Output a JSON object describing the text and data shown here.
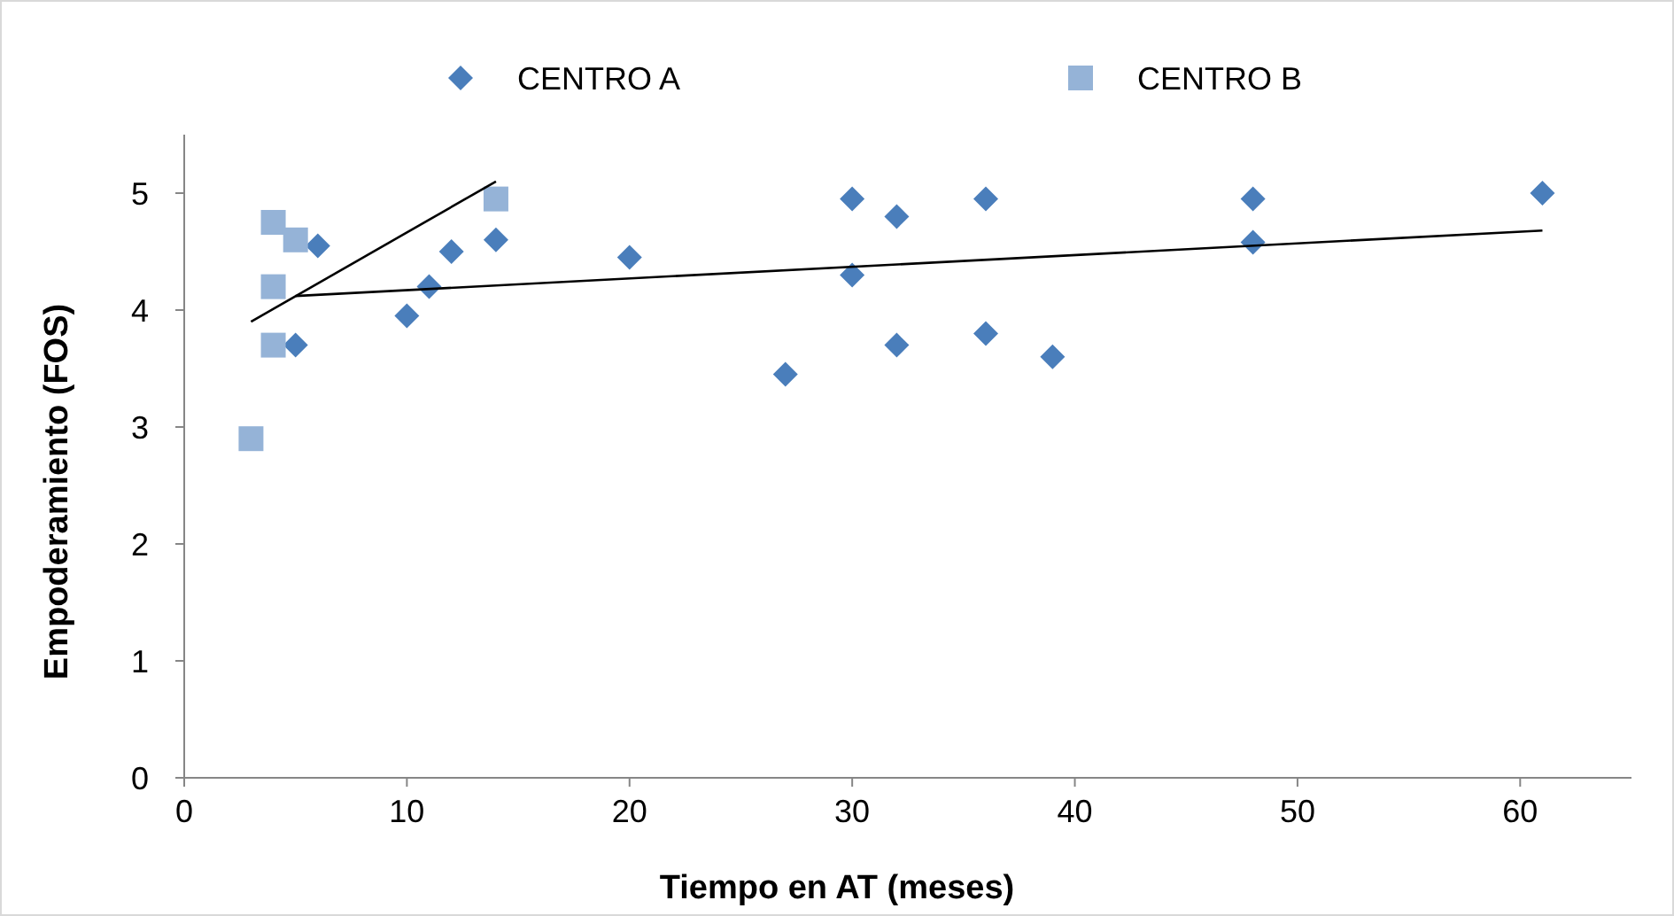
{
  "chart_data": {
    "type": "scatter",
    "xlabel": "Tiempo en AT (meses)",
    "ylabel": "Empoderamiento (FOS)",
    "xlim": [
      0,
      65
    ],
    "xticks": [
      0,
      10,
      20,
      30,
      40,
      50,
      60
    ],
    "ylim": [
      0,
      5.5
    ],
    "yticks": [
      0,
      1,
      2,
      3,
      4,
      5
    ],
    "grid": false,
    "legend": "top",
    "series": [
      {
        "name": "CENTRO A",
        "color": "#4a7ebb",
        "marker": "diamond",
        "x": [
          5,
          6,
          10,
          11,
          12,
          14,
          20,
          27,
          30,
          30,
          32,
          32,
          36,
          36,
          39,
          48,
          48,
          61
        ],
        "values": [
          3.7,
          4.55,
          3.95,
          4.2,
          4.5,
          4.6,
          4.45,
          3.45,
          4.95,
          4.3,
          4.8,
          3.7,
          4.95,
          3.8,
          3.6,
          4.95,
          4.58,
          5.0
        ]
      },
      {
        "name": "CENTRO B",
        "color": "#95b3d7",
        "marker": "square",
        "x": [
          3,
          4,
          4,
          4,
          5,
          14
        ],
        "values": [
          2.9,
          4.75,
          4.2,
          3.7,
          4.6,
          4.95
        ]
      },
      {
        "type": "line",
        "color": "#000000",
        "marker": "none",
        "x": [
          5,
          61
        ],
        "values": [
          4.12,
          4.68
        ]
      },
      {
        "type": "line",
        "color": "#000000",
        "marker": "none",
        "x": [
          3,
          14
        ],
        "values": [
          3.9,
          5.1
        ]
      }
    ]
  }
}
